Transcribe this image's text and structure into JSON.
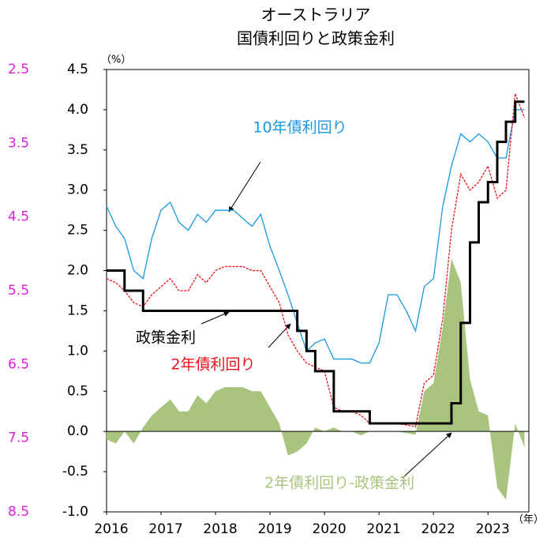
{
  "chart_data": {
    "type": "line",
    "title": "オーストラリア",
    "subtitle": "国債利回りと政策金利",
    "ylabel": "（%）",
    "xlabel": "（年）",
    "x": [
      2016.0,
      2016.17,
      2016.33,
      2016.5,
      2016.67,
      2016.83,
      2017.0,
      2017.17,
      2017.33,
      2017.5,
      2017.67,
      2017.83,
      2018.0,
      2018.17,
      2018.33,
      2018.5,
      2018.67,
      2018.83,
      2019.0,
      2019.17,
      2019.33,
      2019.5,
      2019.67,
      2019.83,
      2020.0,
      2020.17,
      2020.33,
      2020.5,
      2020.67,
      2020.83,
      2021.0,
      2021.17,
      2021.33,
      2021.5,
      2021.67,
      2021.83,
      2022.0,
      2022.17,
      2022.33,
      2022.5,
      2022.67,
      2022.83,
      2023.0,
      2023.17,
      2023.33,
      2023.5,
      2023.67
    ],
    "series": [
      {
        "name": "2年債利回り-政策金利",
        "color": "#a9c47f",
        "style": "area",
        "values": [
          -0.1,
          -0.15,
          0.0,
          -0.15,
          0.05,
          0.2,
          0.3,
          0.4,
          0.25,
          0.25,
          0.45,
          0.35,
          0.5,
          0.55,
          0.55,
          0.55,
          0.5,
          0.5,
          0.3,
          0.1,
          -0.3,
          -0.25,
          -0.15,
          0.05,
          0.0,
          0.05,
          0.0,
          0.0,
          -0.05,
          0.0,
          0.0,
          0.0,
          0.0,
          -0.02,
          -0.04,
          0.5,
          0.6,
          1.3,
          2.15,
          1.85,
          0.65,
          0.25,
          0.2,
          -0.7,
          -0.85,
          0.1,
          -0.2
        ]
      },
      {
        "name": "10年債利回り",
        "color": "#1a98e0",
        "style": "line",
        "values": [
          2.8,
          2.55,
          2.4,
          2.0,
          1.9,
          2.4,
          2.75,
          2.85,
          2.6,
          2.5,
          2.7,
          2.6,
          2.75,
          2.75,
          2.75,
          2.65,
          2.55,
          2.7,
          2.3,
          2.0,
          1.7,
          1.35,
          1.0,
          1.1,
          1.15,
          0.9,
          0.9,
          0.9,
          0.85,
          0.85,
          1.1,
          1.7,
          1.7,
          1.5,
          1.25,
          1.8,
          1.9,
          2.8,
          3.3,
          3.7,
          3.6,
          3.7,
          3.6,
          3.4,
          3.4,
          4.0,
          4.0
        ]
      },
      {
        "name": "2年債利回り",
        "color": "#e8141c",
        "style": "dashed",
        "values": [
          1.9,
          1.85,
          1.75,
          1.6,
          1.55,
          1.7,
          1.8,
          1.9,
          1.75,
          1.75,
          1.95,
          1.85,
          2.0,
          2.05,
          2.05,
          2.05,
          2.0,
          2.0,
          1.8,
          1.6,
          1.2,
          1.0,
          0.85,
          0.8,
          0.75,
          0.3,
          0.25,
          0.25,
          0.2,
          0.1,
          0.1,
          0.1,
          0.1,
          0.08,
          0.06,
          0.6,
          0.7,
          1.4,
          2.5,
          3.2,
          3.0,
          3.1,
          3.3,
          2.9,
          3.0,
          4.2,
          3.9
        ]
      },
      {
        "name": "政策金利",
        "color": "#000000",
        "style": "step",
        "values": [
          2.0,
          2.0,
          1.75,
          1.75,
          1.5,
          1.5,
          1.5,
          1.5,
          1.5,
          1.5,
          1.5,
          1.5,
          1.5,
          1.5,
          1.5,
          1.5,
          1.5,
          1.5,
          1.5,
          1.5,
          1.5,
          1.25,
          1.0,
          0.75,
          0.75,
          0.25,
          0.25,
          0.25,
          0.25,
          0.1,
          0.1,
          0.1,
          0.1,
          0.1,
          0.1,
          0.1,
          0.1,
          0.1,
          0.35,
          1.35,
          2.35,
          2.85,
          3.1,
          3.6,
          3.85,
          4.1,
          4.1
        ]
      }
    ],
    "xlim": [
      2016,
      2023.75
    ],
    "xticks": [
      2016,
      2017,
      2018,
      2019,
      2020,
      2021,
      2022,
      2023
    ],
    "ylim": [
      -1.0,
      4.5
    ],
    "yticks": [
      {
        "value": -1,
        "label": "-1.0"
      },
      {
        "value": -0.5,
        "label": "-0.5"
      },
      {
        "value": 0,
        "label": "0.0"
      },
      {
        "value": 0.5,
        "label": "0.5"
      },
      {
        "value": 1,
        "label": "1.0"
      },
      {
        "value": 1.5,
        "label": "1.5"
      },
      {
        "value": 2,
        "label": "2.0"
      },
      {
        "value": 2.5,
        "label": "2.5"
      },
      {
        "value": 3,
        "label": "3.0"
      },
      {
        "value": 3.5,
        "label": "3.5"
      },
      {
        "value": 4,
        "label": "4.0"
      },
      {
        "value": 4.5,
        "label": "4.5"
      }
    ],
    "y2lim": [
      8.5,
      2.5
    ],
    "y2ticks": [
      2.5,
      3.5,
      4.5,
      5.5,
      6.5,
      7.5,
      8.5
    ],
    "y2color": "#e020e0"
  }
}
